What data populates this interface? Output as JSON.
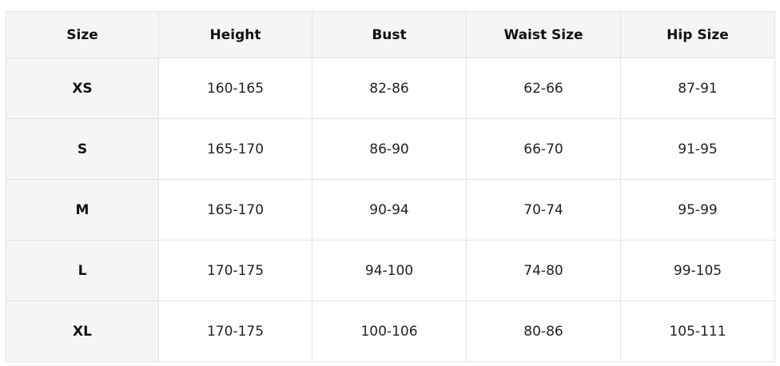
{
  "table": {
    "header": [
      "Size",
      "Height",
      "Bust",
      "Waist Size",
      "Hip Size"
    ],
    "rows": [
      [
        "XS",
        "160-165",
        "82-86",
        "62-66",
        "87-91"
      ],
      [
        "S",
        "165-170",
        "86-90",
        "66-70",
        "91-95"
      ],
      [
        "M",
        "165-170",
        "90-94",
        "70-74",
        "95-99"
      ],
      [
        "L",
        "170-175",
        "94-100",
        "74-80",
        "99-105"
      ],
      [
        "XL",
        "170-175",
        "100-106",
        "80-86",
        "105-111"
      ]
    ]
  }
}
